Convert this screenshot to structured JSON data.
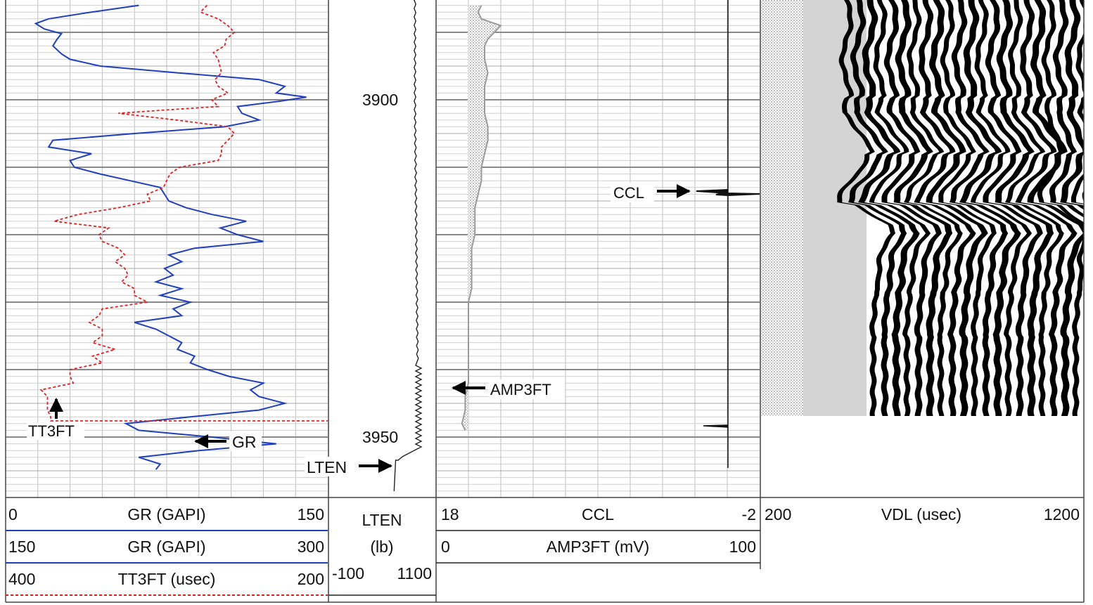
{
  "chart_data": {
    "type": "line",
    "depth_labels": [
      "3900",
      "3950"
    ],
    "track1": {
      "scales": [
        {
          "name": "GR (GAPI)",
          "left": "0",
          "right": "150",
          "color": "#1f3fbf",
          "style": "solid"
        },
        {
          "name": "GR (GAPI)",
          "left": "150",
          "right": "300",
          "color": "#1f3fbf",
          "style": "solid"
        },
        {
          "name": "TT3FT (usec)",
          "left": "400",
          "right": "200",
          "color": "#e02020",
          "style": "dashed"
        }
      ],
      "annotations": {
        "gr": "GR",
        "tt3ft": "TT3FT"
      },
      "gr_curve": {
        "depth": [
          3886,
          3887,
          3888,
          3888.7,
          3889.5,
          3890.2,
          3891,
          3892,
          3893.2,
          3894,
          3895,
          3896,
          3897,
          3898,
          3899,
          3899.6,
          3900.2,
          3901,
          3902,
          3903,
          3904,
          3905,
          3906,
          3907,
          3908,
          3909,
          3910,
          3911,
          3912,
          3913,
          3914,
          3915,
          3916,
          3917,
          3918,
          3919,
          3920,
          3921,
          3922,
          3923,
          3924,
          3925,
          3926,
          3927,
          3928,
          3929,
          3930,
          3931,
          3932,
          3933,
          3934,
          3935,
          3936,
          3937,
          3938,
          3939,
          3940,
          3941,
          3942,
          3943,
          3944,
          3945,
          3946,
          3947,
          3948,
          3949,
          3950,
          3951,
          3952,
          3953,
          3954,
          3954.8
        ],
        "gr": [
          62,
          40,
          20,
          14,
          18,
          26,
          24,
          22,
          26,
          30,
          44,
          80,
          118,
          130,
          126,
          140,
          128,
          108,
          110,
          118,
          102,
          60,
          22,
          20,
          40,
          30,
          32,
          44,
          58,
          72,
          74,
          76,
          84,
          96,
          112,
          100,
          108,
          120,
          88,
          76,
          82,
          74,
          78,
          70,
          82,
          72,
          86,
          78,
          82,
          60,
          70,
          76,
          82,
          80,
          88,
          86,
          94,
          104,
          120,
          114,
          118,
          130,
          118,
          86,
          56,
          62,
          96,
          126,
          90,
          62,
          72,
          70
        ]
      },
      "tt3ft_curve": {
        "depth": [
          3886,
          3887,
          3888,
          3889,
          3890,
          3891,
          3892,
          3893,
          3894,
          3895,
          3896,
          3897,
          3898,
          3899,
          3900,
          3901,
          3901.5,
          3902,
          3902.5,
          3903,
          3904,
          3905,
          3906,
          3907,
          3908,
          3909,
          3910,
          3911,
          3912,
          3913,
          3914,
          3915,
          3916,
          3917,
          3918,
          3919,
          3920,
          3921,
          3922,
          3923,
          3924,
          3925,
          3926,
          3927,
          3928,
          3929,
          3930,
          3931,
          3932,
          3933,
          3934,
          3935,
          3936,
          3937,
          3938,
          3939,
          3940,
          3941,
          3942,
          3943,
          3944,
          3945,
          3946,
          3947,
          3947.6
        ],
        "tt3ft": [
          275,
          279,
          268,
          262,
          258,
          263,
          264,
          271,
          268,
          267,
          266,
          270,
          268,
          262,
          272,
          268,
          300,
          330,
          312,
          294,
          262,
          258,
          262,
          266,
          266,
          268,
          292,
          298,
          300,
          302,
          312,
          310,
          330,
          355,
          370,
          336,
          342,
          340,
          330,
          326,
          332,
          326,
          324,
          328,
          320,
          320,
          312,
          340,
          342,
          348,
          340,
          340,
          346,
          332,
          346,
          340,
          360,
          360,
          358,
          378,
          374,
          374,
          374,
          372,
          372
        ]
      }
    },
    "track2": {
      "title": "LTEN",
      "unit": "(lb)",
      "left": "-100",
      "right": "1100",
      "annotation": "LTEN"
    },
    "track3": {
      "scales": [
        {
          "name": "CCL",
          "left": "18",
          "right": "-2"
        },
        {
          "name": "AMP3FT (mV)",
          "left": "0",
          "right": "100"
        }
      ],
      "annotations": {
        "ccl": "CCL",
        "amp": "AMP3FT"
      },
      "amp_curve": {
        "depth": [
          3886,
          3887,
          3888,
          3889,
          3890,
          3891,
          3892,
          3894,
          3896,
          3898,
          3900,
          3902,
          3904,
          3906,
          3908,
          3910,
          3912,
          3914,
          3916,
          3918,
          3920,
          3922,
          3924,
          3926,
          3928,
          3930,
          3932,
          3934,
          3936,
          3938,
          3940,
          3942,
          3944,
          3946,
          3948,
          3949
        ],
        "amp": [
          14,
          13,
          14,
          20,
          18,
          16,
          15,
          15,
          16,
          15,
          15,
          15,
          16,
          16,
          15,
          14,
          14,
          13,
          12,
          12,
          12,
          11,
          11,
          11,
          11,
          10,
          10,
          10,
          10,
          10,
          10,
          10,
          9,
          9,
          8,
          9
        ]
      }
    },
    "track4": {
      "name": "VDL (usec)",
      "left": "200",
      "right": "1200"
    }
  }
}
